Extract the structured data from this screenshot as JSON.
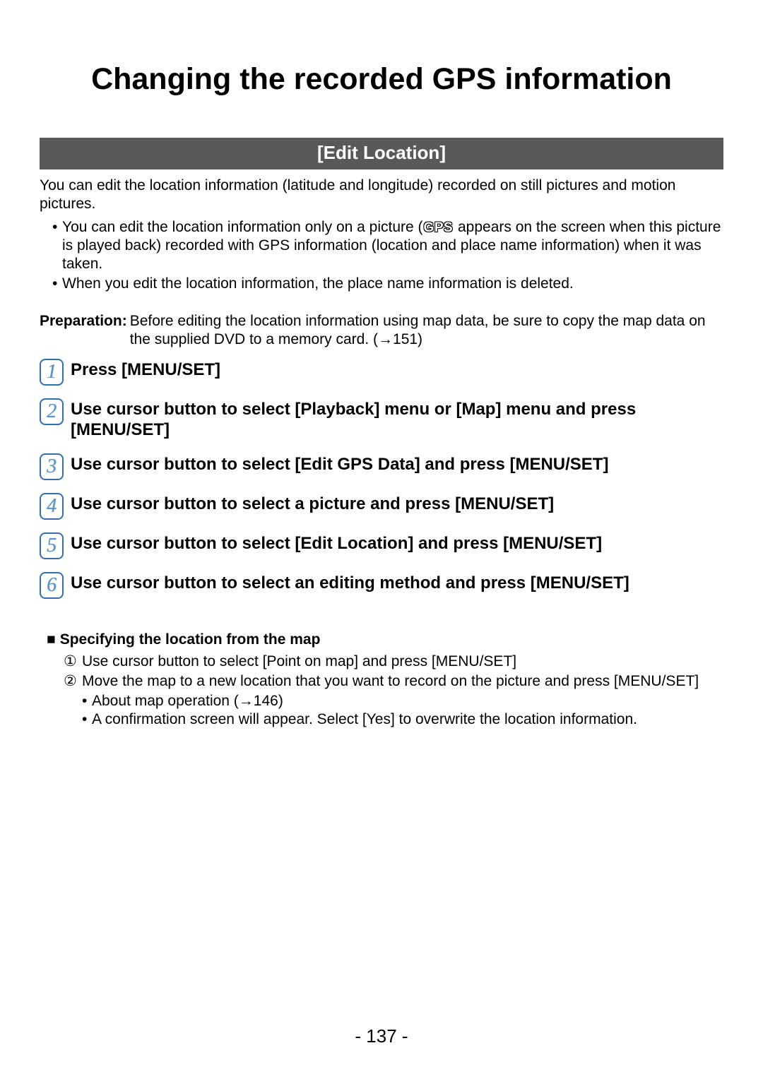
{
  "title": "Changing the recorded GPS information",
  "section_header": "[Edit Location]",
  "intro": "You can edit the location information (latitude and longitude) recorded on still pictures and motion pictures.",
  "bullets": [
    {
      "pre": "You can edit the location information only on a picture (",
      "gps": "GPS",
      "post": " appears on the screen when this picture is played back) recorded with GPS information (location and place name information) when it was taken."
    },
    {
      "pre": "When you edit the location information, the place name information is deleted.",
      "gps": "",
      "post": ""
    }
  ],
  "preparation": {
    "label": "Preparation:",
    "body": "Before editing the location information using map data, be sure to copy the map data on the supplied DVD to a memory card. (→151)"
  },
  "steps": [
    {
      "n": "1",
      "text": "Press [MENU/SET]"
    },
    {
      "n": "2",
      "text": "Use cursor button to select [Playback] menu or [Map] menu and press [MENU/SET]"
    },
    {
      "n": "3",
      "text": "Use cursor button to select [Edit GPS Data] and press [MENU/SET]"
    },
    {
      "n": "4",
      "text": "Use cursor button to select a picture and press [MENU/SET]"
    },
    {
      "n": "5",
      "text": "Use cursor button to select [Edit Location] and press [MENU/SET]"
    },
    {
      "n": "6",
      "text": "Use cursor button to select an editing method and press [MENU/SET]"
    }
  ],
  "subsection": {
    "marker": "■",
    "title": "Specifying the location from the map",
    "items": [
      {
        "marker": "①",
        "text": "Use cursor button to select [Point on map] and press [MENU/SET]"
      },
      {
        "marker": "②",
        "text": "Move the map to a new location that you want to record on the picture and press [MENU/SET]"
      }
    ],
    "sub_bullets": [
      "About map operation (→146)",
      "A confirmation screen will appear. Select [Yes] to overwrite the location information."
    ]
  },
  "page_number": "- 137 -"
}
